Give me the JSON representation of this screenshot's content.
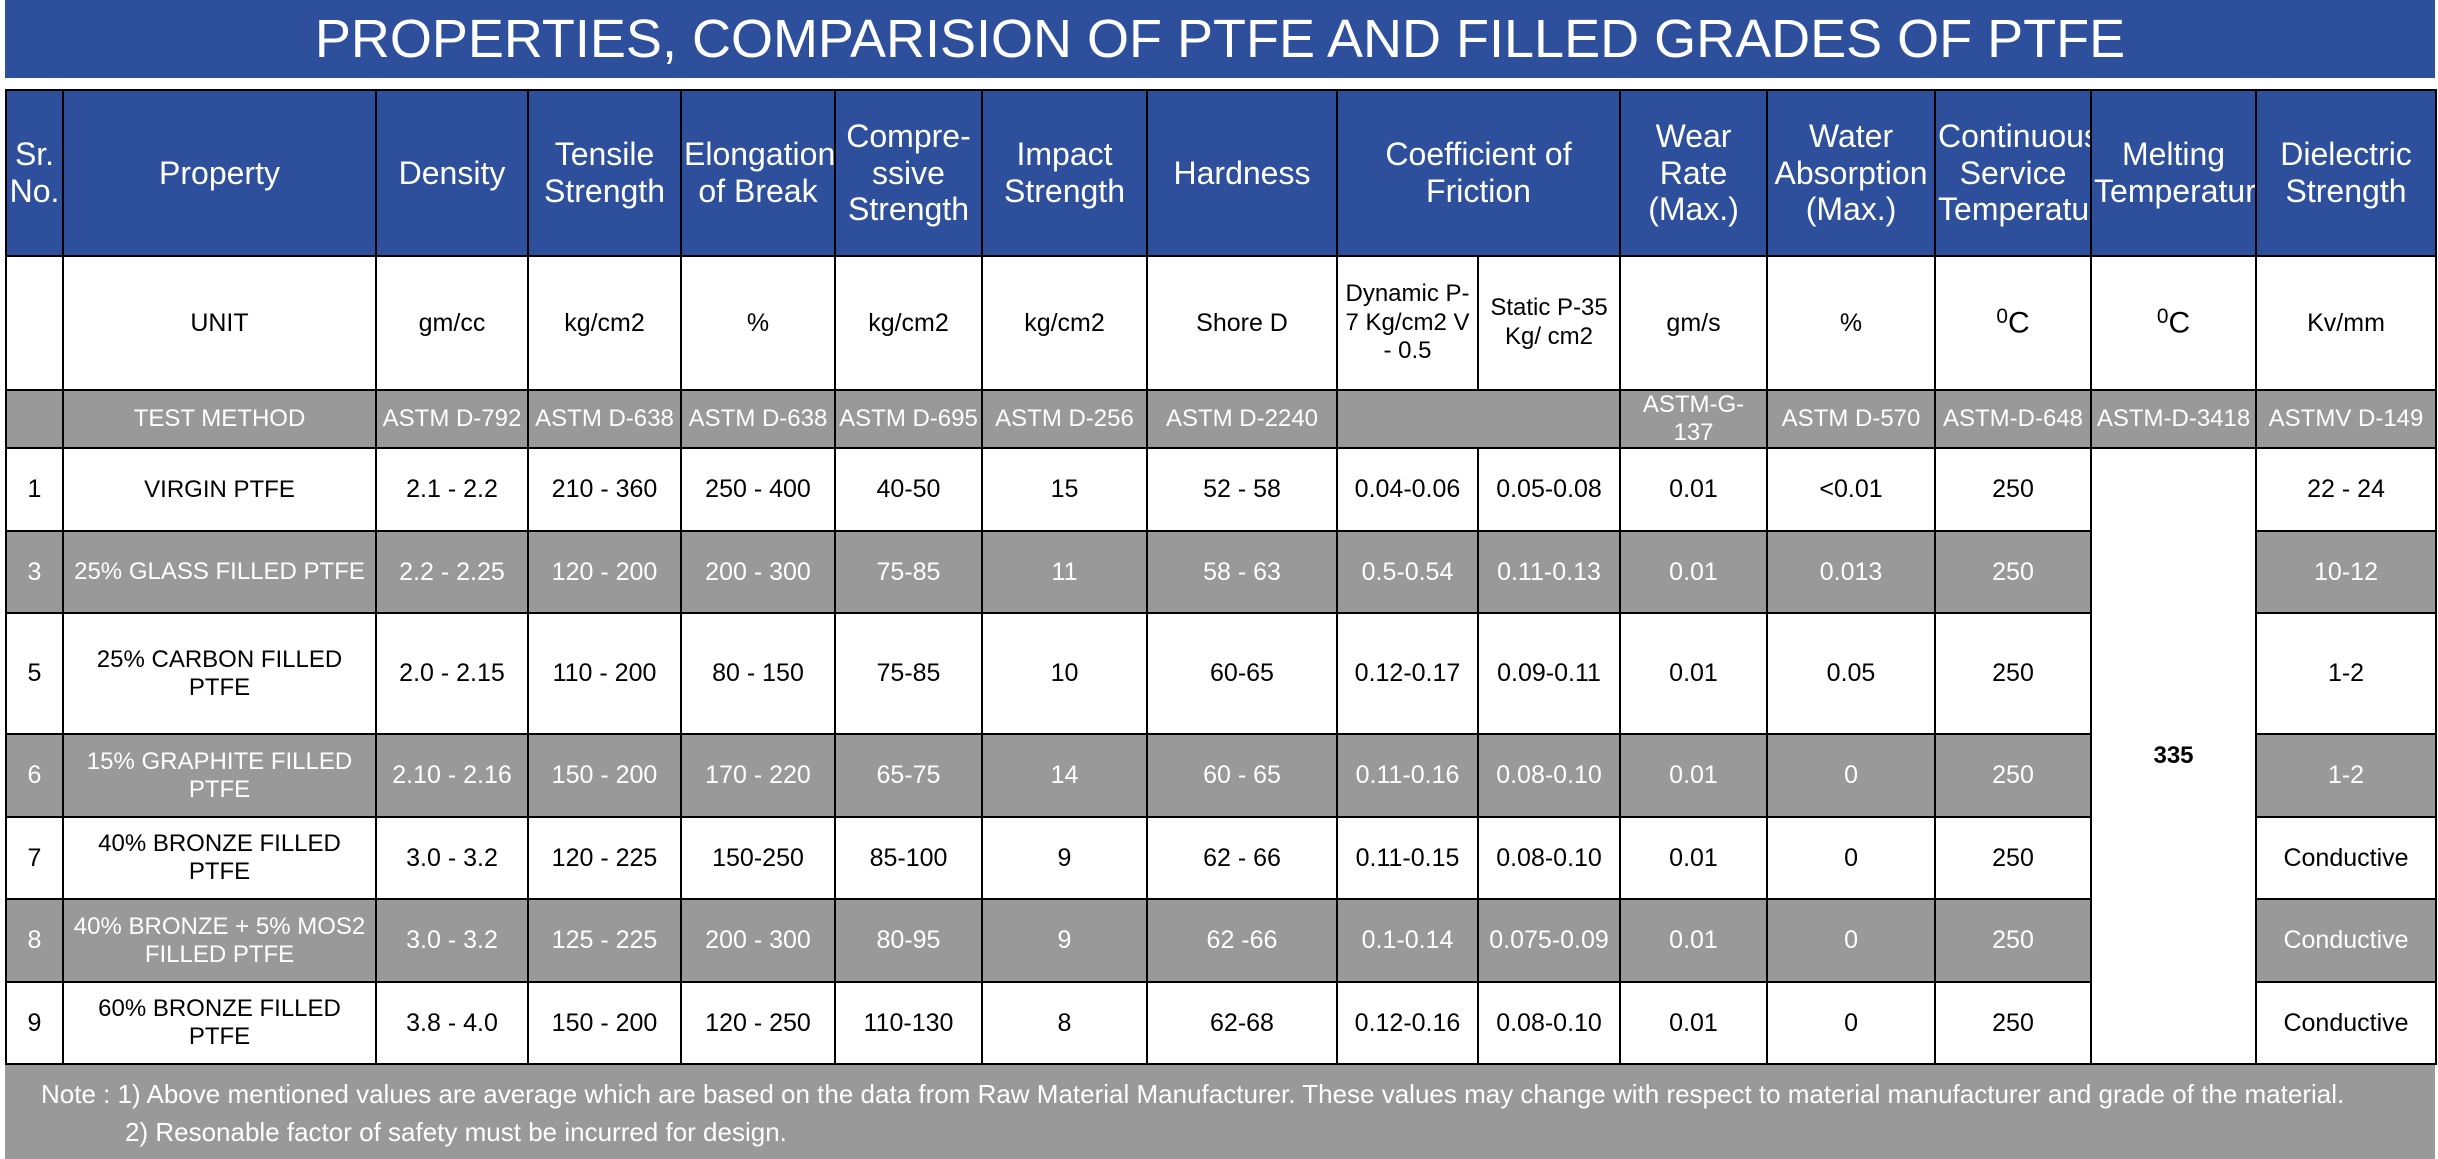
{
  "title": "PROPERTIES, COMPARISION OF PTFE AND FILLED GRADES OF PTFE",
  "table": {
    "headers": [
      "Sr. No.",
      "Property",
      "Density",
      "Tensile Strength",
      "Elongation of Break",
      "Compre-ssive Strength",
      "Impact Strength",
      "Hardness",
      "Coefficient of Friction",
      "Wear Rate (Max.)",
      "Water Absorption (Max.)",
      "Continuous Service Temperature",
      "Melting Temperature",
      "Dielectric Strength"
    ],
    "units": [
      "UNIT",
      "gm/cc",
      "kg/cm2",
      "%",
      "kg/cm2",
      "kg/cm2",
      "Shore D",
      "Dynamic P-7 Kg/cm2 V - 0.5",
      "Static P-35 Kg/ cm2",
      "gm/s",
      "%",
      {
        "sup": "0",
        "base": "C"
      },
      {
        "sup": "0",
        "base": "C"
      },
      "Kv/mm"
    ],
    "test_methods": [
      "TEST METHOD",
      "ASTM D-792",
      "ASTM D-638",
      "ASTM D-638",
      "ASTM D-695",
      "ASTM D-256",
      "ASTM D-2240",
      "ASTM-G-137",
      "ASTM D-570",
      "ASTM-D-648",
      "ASTM-D-3418",
      "ASTMV D-149"
    ],
    "melting_temperature": "335",
    "rows": [
      [
        "1",
        "VIRGIN PTFE",
        "2.1 - 2.2",
        "210 - 360",
        "250 - 400",
        "40-50",
        "15",
        "52 - 58",
        "0.04-0.06",
        "0.05-0.08",
        "0.01",
        "<0.01",
        "250",
        "22 - 24"
      ],
      [
        "3",
        "25% GLASS FILLED PTFE",
        "2.2 - 2.25",
        "120 - 200",
        "200 - 300",
        "75-85",
        "11",
        "58 - 63",
        "0.5-0.54",
        "0.11-0.13",
        "0.01",
        "0.013",
        "250",
        "10-12"
      ],
      [
        "5",
        "25% CARBON FILLED PTFE",
        "2.0 - 2.15",
        "110 - 200",
        "80 - 150",
        "75-85",
        "10",
        "60-65",
        "0.12-0.17",
        "0.09-0.11",
        "0.01",
        "0.05",
        "250",
        "1-2"
      ],
      [
        "6",
        "15% GRAPHITE FILLED PTFE",
        "2.10 - 2.16",
        "150 - 200",
        "170 - 220",
        "65-75",
        "14",
        "60 - 65",
        "0.11-0.16",
        "0.08-0.10",
        "0.01",
        "0",
        "250",
        "1-2"
      ],
      [
        "7",
        "40% BRONZE FILLED PTFE",
        "3.0 - 3.2",
        "120 - 225",
        "150-250",
        "85-100",
        "9",
        "62 - 66",
        "0.11-0.15",
        "0.08-0.10",
        "0.01",
        "0",
        "250",
        "Conductive"
      ],
      [
        "8",
        "40% BRONZE + 5% MOS2 FILLED PTFE",
        "3.0 - 3.2",
        "125 - 225",
        "200 - 300",
        "80-95",
        "9",
        "62 -66",
        "0.1-0.14",
        "0.075-0.09",
        "0.01",
        "0",
        "250",
        "Conductive"
      ],
      [
        "9",
        "60% BRONZE FILLED PTFE",
        "3.8 - 4.0",
        "150 - 200",
        "120 - 250",
        "110-130",
        "8",
        "62-68",
        "0.12-0.16",
        "0.08-0.10",
        "0.01",
        "0",
        "250",
        "Conductive"
      ]
    ]
  },
  "note": [
    "Note : 1) Above mentioned values are average which are based on the data from Raw Material Manufacturer. These values may change with respect to material manufacturer and grade of the material.",
    "2) Resonable factor of safety must be incurred for design."
  ]
}
